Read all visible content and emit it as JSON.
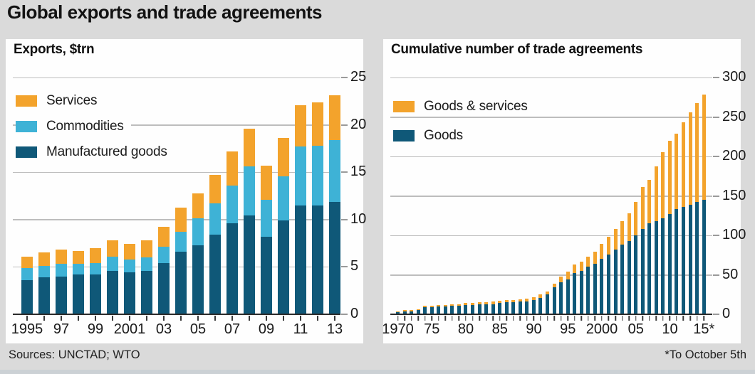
{
  "page": {
    "title": "Global exports and trade agreements",
    "sources": "Sources: UNCTAD; WTO",
    "footnote": "*To October 5th"
  },
  "colors": {
    "orange": "#f3a32c",
    "light_blue": "#3eb2d6",
    "dark_teal": "#0f5878",
    "background": "#dadada",
    "panel": "#fefefe"
  },
  "chart_data": [
    {
      "type": "bar",
      "stacked": true,
      "title": "Exports, $trn",
      "categories": [
        1995,
        1996,
        1997,
        1998,
        1999,
        2000,
        2001,
        2002,
        2003,
        2004,
        2005,
        2006,
        2007,
        2008,
        2009,
        2010,
        2011,
        2012,
        2013
      ],
      "series": [
        {
          "name": "Manufactured goods",
          "color": "#0f5878",
          "values": [
            3.6,
            3.9,
            4.0,
            4.2,
            4.2,
            4.6,
            4.4,
            4.6,
            5.4,
            6.6,
            7.3,
            8.4,
            9.6,
            10.4,
            8.2,
            9.9,
            11.5,
            11.5,
            11.9
          ]
        },
        {
          "name": "Commodities",
          "color": "#3eb2d6",
          "values": [
            1.3,
            1.2,
            1.3,
            1.1,
            1.2,
            1.5,
            1.4,
            1.4,
            1.7,
            2.1,
            2.8,
            3.3,
            4.0,
            5.2,
            3.9,
            4.7,
            6.2,
            6.3,
            6.5
          ]
        },
        {
          "name": "Services",
          "color": "#f3a32c",
          "values": [
            1.2,
            1.4,
            1.5,
            1.4,
            1.6,
            1.7,
            1.6,
            1.8,
            2.1,
            2.6,
            2.7,
            3.0,
            3.6,
            4.0,
            3.6,
            4.0,
            4.4,
            4.6,
            4.7
          ]
        }
      ],
      "legend_order": [
        2,
        1,
        0
      ],
      "ylim": [
        0,
        25
      ],
      "yticks": [
        0,
        5,
        10,
        15,
        20,
        25
      ],
      "grid": true,
      "legend_position": "top-left",
      "x_tick_labels": {
        "0": "1995",
        "2": "97",
        "4": "99",
        "6": "2001",
        "8": "03",
        "10": "05",
        "12": "07",
        "14": "09",
        "16": "11",
        "18": "13"
      }
    },
    {
      "type": "bar",
      "stacked": true,
      "title": "Cumulative number of trade agreements",
      "categories": [
        1970,
        1971,
        1972,
        1973,
        1974,
        1975,
        1976,
        1977,
        1978,
        1979,
        1980,
        1981,
        1982,
        1983,
        1984,
        1985,
        1986,
        1987,
        1988,
        1989,
        1990,
        1991,
        1992,
        1993,
        1994,
        1995,
        1996,
        1997,
        1998,
        1999,
        2000,
        2001,
        2002,
        2003,
        2004,
        2005,
        2006,
        2007,
        2008,
        2009,
        2010,
        2011,
        2012,
        2013,
        2014,
        2015
      ],
      "series": [
        {
          "name": "Goods",
          "color": "#0f5878",
          "values": [
            3,
            4,
            4,
            5,
            9,
            9,
            10,
            10,
            11,
            11,
            12,
            12,
            13,
            13,
            13,
            14,
            15,
            15,
            16,
            16,
            18,
            21,
            25,
            34,
            41,
            44,
            52,
            55,
            60,
            64,
            70,
            76,
            82,
            88,
            93,
            100,
            108,
            115,
            118,
            122,
            127,
            133,
            136,
            139,
            142,
            145
          ]
        },
        {
          "name": "Goods & services",
          "color": "#f3a32c",
          "values": [
            1,
            1,
            1,
            1,
            2,
            2,
            2,
            2,
            2,
            2,
            2,
            2,
            2,
            2,
            3,
            3,
            3,
            3,
            3,
            4,
            4,
            4,
            4,
            5,
            7,
            10,
            11,
            12,
            13,
            15,
            19,
            22,
            26,
            30,
            35,
            42,
            53,
            55,
            69,
            83,
            93,
            96,
            107,
            117,
            126,
            133
          ]
        }
      ],
      "legend_order": [
        1,
        0
      ],
      "ylim": [
        0,
        300
      ],
      "yticks": [
        0,
        50,
        100,
        150,
        200,
        250,
        300
      ],
      "grid": true,
      "legend_position": "top-left",
      "x_tick_labels": {
        "0": "1970",
        "5": "75",
        "10": "80",
        "15": "85",
        "20": "90",
        "25": "95",
        "30": "2000",
        "35": "05",
        "40": "10",
        "45": "15*"
      }
    }
  ]
}
